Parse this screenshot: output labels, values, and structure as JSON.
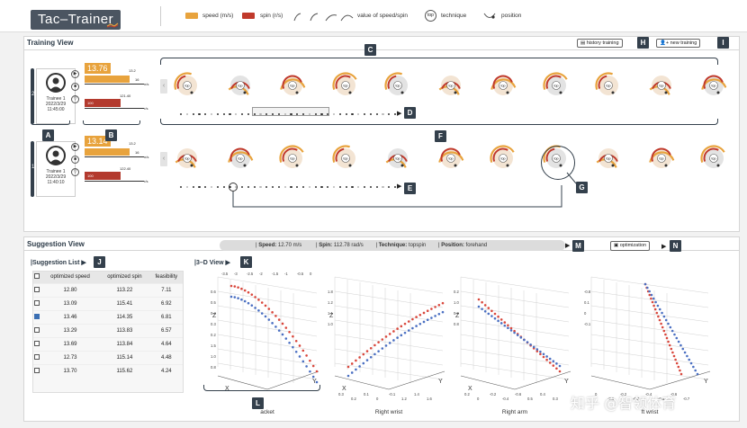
{
  "app": {
    "title": "Tac–Trainer"
  },
  "legend": {
    "speed_label": "speed (m/s)",
    "speed_color": "#e8a33d",
    "spin_label": "spin (r/s)",
    "spin_color": "#c0392b",
    "value_label": "value of speed/spin",
    "technique_badge": "top",
    "technique_label": "technique",
    "position_label": "position"
  },
  "training_view": {
    "title": "Training View",
    "history_button": "history training",
    "new_button": "new training",
    "labels": {
      "A": "A",
      "B": "B",
      "C": "C",
      "D": "D",
      "E": "E",
      "F": "F",
      "G": "G",
      "H": "H",
      "I": "I"
    },
    "trainees": [
      {
        "index": "2",
        "name": "Trainee 1",
        "date": "2022/3/29",
        "time": "11:45:00",
        "speed": "13.76",
        "ticks": [
          "13.2",
          "16",
          "n/s",
          "100",
          "121.40",
          "r/s"
        ]
      },
      {
        "index": "1",
        "name": "Trainee 1",
        "date": "2022/3/29",
        "time": "11:40:10",
        "speed": "13.14",
        "ticks": [
          "13.2",
          "16",
          "n/s",
          "100",
          "122.40",
          "r/s"
        ]
      }
    ],
    "gauge_badge": "top",
    "nav_prev": "‹",
    "nav_next": "›"
  },
  "suggestion_view": {
    "title": "Suggestion View",
    "summary": {
      "speed_label": "Speed:",
      "speed_value": "12.70 m/s",
      "spin_label": "Spin:",
      "spin_value": "112.78 rad/s",
      "technique_label": "Technique:",
      "technique_value": "topspin",
      "position_label": "Position:",
      "position_value": "forehand"
    },
    "labels": {
      "J": "J",
      "K": "K",
      "L": "L",
      "M": "M",
      "N": "N"
    },
    "optimization_button": "optimization",
    "list_title": "Suggestion List",
    "columns": [
      "optimized speed",
      "optimized spin",
      "feasibility"
    ],
    "rows": [
      {
        "speed": "12.80",
        "spin": "113.22",
        "feasibility": "7.11",
        "checked": false
      },
      {
        "speed": "13.09",
        "spin": "115.41",
        "feasibility": "6.92",
        "checked": false
      },
      {
        "speed": "13.46",
        "spin": "114.35",
        "feasibility": "6.81",
        "checked": true
      },
      {
        "speed": "13.29",
        "spin": "113.83",
        "feasibility": "6.57",
        "checked": false
      },
      {
        "speed": "13.69",
        "spin": "113.84",
        "feasibility": "4.64",
        "checked": false
      },
      {
        "speed": "12.73",
        "spin": "115.14",
        "feasibility": "4.48",
        "checked": false
      },
      {
        "speed": "13.70",
        "spin": "115.62",
        "feasibility": "4.24",
        "checked": false
      }
    ],
    "view3d_title": "3–D View",
    "plots": [
      {
        "caption": "acket",
        "axis_y": "Y",
        "axis_x": "X",
        "axis_z": "Z",
        "ticks": [
          "-3.5",
          "-3",
          "-2.5",
          "-2",
          "-1.5",
          "-1",
          "-0.5",
          "0",
          "0.6",
          "0.5",
          "0.4",
          "0.3",
          "0.2",
          "1.5",
          "1.0",
          "0.8"
        ]
      },
      {
        "caption": "Right wrist",
        "axis_x": "X",
        "axis_y": "Y",
        "axis_z": "Z",
        "ticks": [
          "0.3",
          "0.2",
          "0.1",
          "0",
          "-0.1",
          "1.2",
          "1.4",
          "1.6",
          "1.8",
          "1.2",
          "1.1",
          "1.0"
        ]
      },
      {
        "caption": "Right arm",
        "axis_x": "X",
        "axis_y": "Y",
        "axis_z": "Z",
        "ticks": [
          "0.2",
          "0",
          "-0.2",
          "-0.4",
          "-0.6",
          "0.5",
          "0.4",
          "0.3",
          "0.2",
          "1.0",
          "0.9",
          "0.8"
        ]
      },
      {
        "caption": "ft wrist",
        "axis_x": "",
        "axis_y": "Y",
        "axis_z": "",
        "ticks": [
          "0",
          "-0.1",
          "-0.2",
          "-0.3",
          "-0.4",
          "-0.5",
          "-0.6",
          "-0.7",
          "-0.8",
          "0.1",
          "0",
          "-0.1"
        ]
      }
    ]
  },
  "watermark": "知乎 @智领体育"
}
